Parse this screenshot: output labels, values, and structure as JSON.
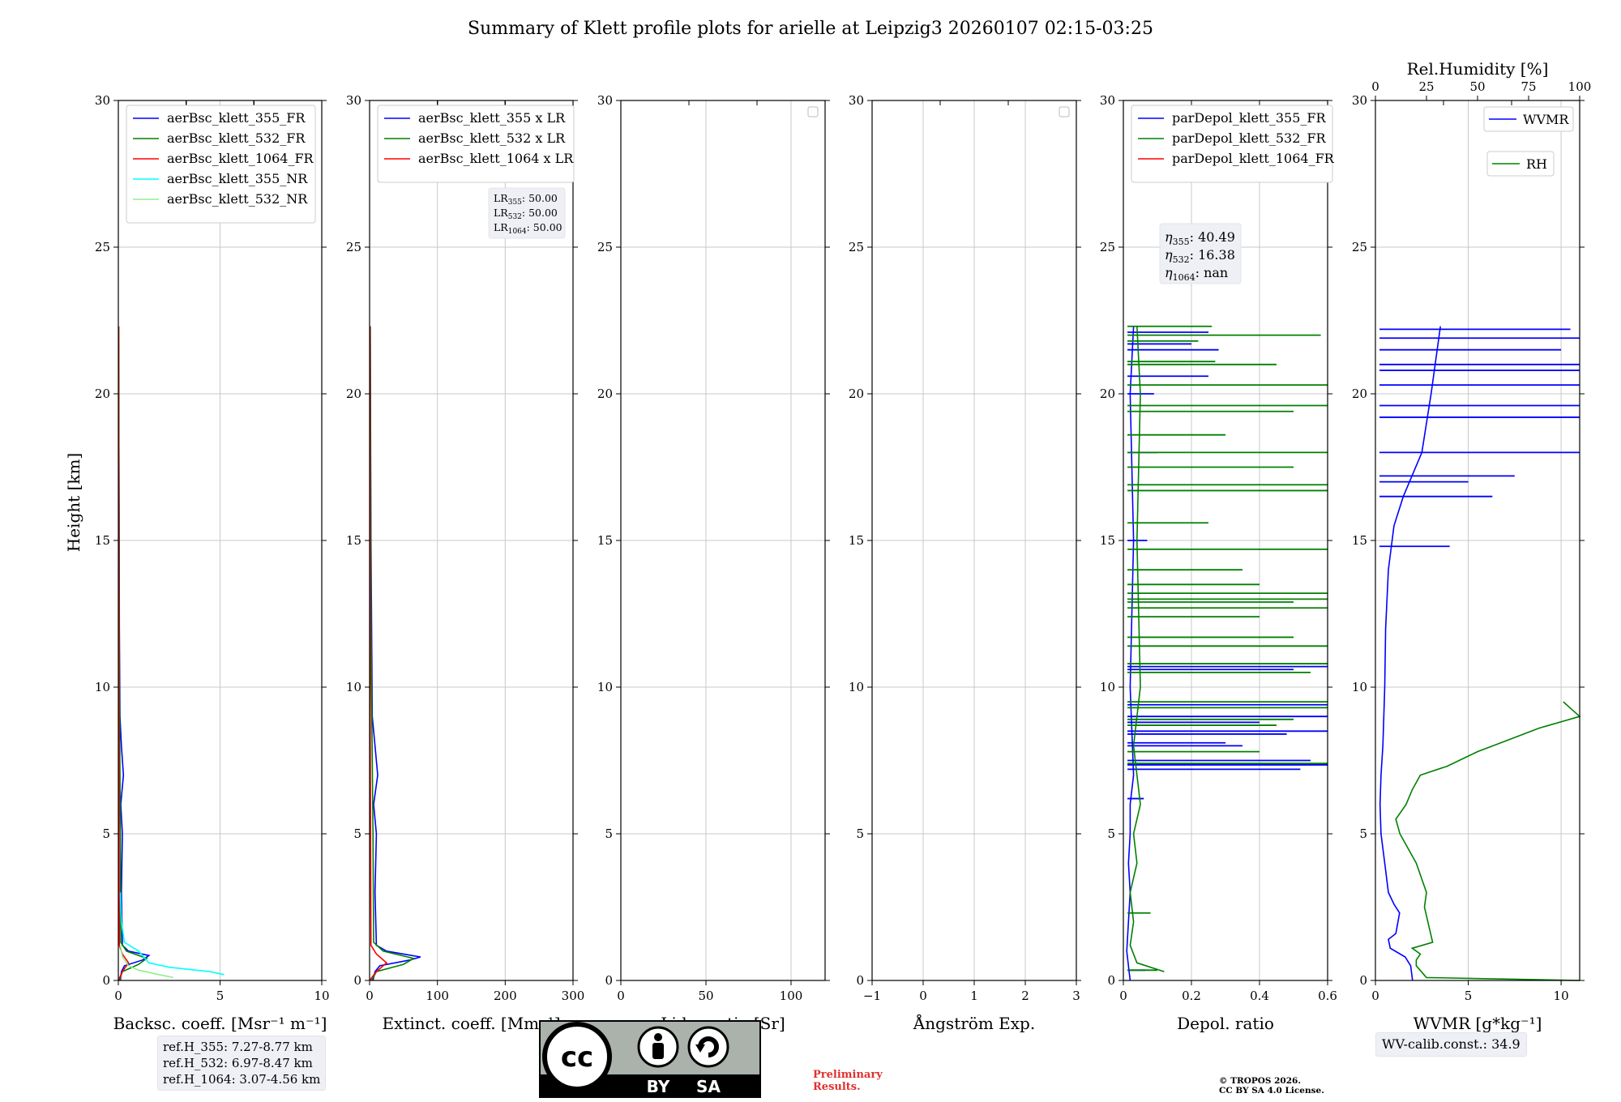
{
  "title": "Summary of Klett profile plots for arielle at Leipzig3 20260107 02:15-03:25",
  "ylabel": "Height [km]",
  "y_ticks": [
    "0",
    "5",
    "10",
    "15",
    "20",
    "25",
    "30"
  ],
  "colors": {
    "c355": "#0000ff",
    "c532": "#008000",
    "c1064": "#ff0000",
    "c355nr": "#00ffff",
    "c532nr": "#90ee90"
  },
  "chart_data": [
    {
      "type": "line",
      "id": "backscatter",
      "xlabel": "Backsc. coeff. [Msr⁻¹ m⁻¹]",
      "xlim": [
        0,
        10
      ],
      "xticks": [
        0,
        5,
        10
      ],
      "ylim": [
        0,
        30
      ],
      "series": [
        {
          "name": "aerBsc_klett_355_FR",
          "color": "#0000ff",
          "x": [
            0.1,
            0.15,
            0.3,
            1.2,
            1.5,
            0.5,
            0.2,
            0.15,
            0.2,
            0.12,
            0.25,
            0.15,
            0.08,
            0.05,
            0.04,
            0.02,
            0.01
          ],
          "y": [
            0,
            0.3,
            0.5,
            0.7,
            0.85,
            1.0,
            1.2,
            3.0,
            5.0,
            6.0,
            7.0,
            8.0,
            9.0,
            12.0,
            16.0,
            20.0,
            22.3
          ]
        },
        {
          "name": "aerBsc_klett_532_FR",
          "color": "#008000",
          "x": [
            0.05,
            0.2,
            1.0,
            1.4,
            0.4,
            0.12,
            0.1,
            0.05,
            0.03,
            0.02
          ],
          "y": [
            0,
            0.3,
            0.55,
            0.75,
            1.0,
            1.3,
            5.0,
            10.0,
            16.0,
            22.3
          ]
        },
        {
          "name": "aerBsc_klett_1064_FR",
          "color": "#ff0000",
          "x": [
            0,
            0.2,
            0.5,
            0.2,
            0.05,
            0.03,
            0.02,
            0.01
          ],
          "y": [
            0,
            0.3,
            0.6,
            0.9,
            1.2,
            5.0,
            15.0,
            22.3
          ]
        },
        {
          "name": "aerBsc_klett_355_NR",
          "color": "#00ffff",
          "x": [
            5.2,
            4.5,
            2.5,
            1.5,
            1.0,
            0.3,
            0.15,
            0.1
          ],
          "y": [
            0.2,
            0.3,
            0.45,
            0.6,
            1.0,
            1.3,
            2.0,
            3.0
          ]
        },
        {
          "name": "aerBsc_klett_532_NR",
          "color": "#90ee90",
          "x": [
            2.7,
            2.0,
            1.0,
            0.5,
            0.2,
            0.1
          ],
          "y": [
            0.1,
            0.2,
            0.35,
            0.5,
            0.8,
            1.2
          ]
        }
      ]
    },
    {
      "type": "line",
      "id": "extinction",
      "xlabel": "Extinct. coeff. [Mm⁻¹]",
      "xlim": [
        0,
        300
      ],
      "xticks": [
        0,
        100,
        200,
        300
      ],
      "ylim": [
        0,
        30
      ],
      "series": [
        {
          "name": "aerBsc_klett_355 x LR",
          "color": "#0000ff",
          "x": [
            5,
            8,
            15,
            60,
            75,
            25,
            10,
            8,
            10,
            6,
            12,
            8,
            4,
            2,
            1
          ],
          "y": [
            0,
            0.3,
            0.5,
            0.7,
            0.8,
            1.0,
            1.2,
            3.0,
            5.0,
            6.0,
            7.0,
            8.0,
            9.0,
            15.0,
            22.3
          ]
        },
        {
          "name": "aerBsc_klett_532 x LR",
          "color": "#008000",
          "x": [
            3,
            10,
            50,
            65,
            20,
            6,
            5,
            2,
            1
          ],
          "y": [
            0,
            0.3,
            0.55,
            0.75,
            1.0,
            1.3,
            5.0,
            12.0,
            22.3
          ]
        },
        {
          "name": "aerBsc_klett_1064 x LR",
          "color": "#ff0000",
          "x": [
            0,
            10,
            25,
            10,
            2,
            1,
            0.5
          ],
          "y": [
            0,
            0.3,
            0.6,
            0.9,
            1.2,
            8.0,
            22.3
          ]
        }
      ],
      "lr_values": {
        "355": "50.00",
        "532": "50.00",
        "1064": "50.00"
      }
    },
    {
      "type": "line",
      "id": "lidar-ratio",
      "xlabel": "Lidar ratio [Sr]",
      "xlim": [
        0,
        120
      ],
      "xticks": [
        0,
        50,
        100
      ],
      "ylim": [
        0,
        30
      ],
      "series": []
    },
    {
      "type": "line",
      "id": "angstrom",
      "xlabel": "Ångström Exp.",
      "xlim": [
        -1,
        3
      ],
      "xticks": [
        -1,
        0,
        1,
        2,
        3
      ],
      "ylim": [
        0,
        30
      ],
      "series": []
    },
    {
      "type": "line",
      "id": "depol",
      "xlabel": "Depol. ratio",
      "xlim": [
        0,
        0.6
      ],
      "xticks": [
        0,
        0.2,
        0.4,
        0.6
      ],
      "ylim": [
        0,
        30
      ],
      "series": [
        {
          "name": "parDepol_klett_355_FR",
          "color": "#0000ff",
          "x": [
            0.02,
            0.01,
            0.015,
            0.02,
            0.015,
            0.02,
            0.02,
            0.03,
            0.02,
            0.03,
            0.02,
            0.03
          ],
          "y": [
            0,
            1.0,
            2.0,
            3.0,
            4.0,
            5.0,
            6.0,
            7.0,
            10.0,
            15.0,
            20.0,
            22.3
          ],
          "spikes": [
            [
              0.065,
              0.35
            ],
            [
              0.06,
              6.2
            ],
            [
              0.52,
              7.2
            ],
            [
              0.6,
              7.35
            ],
            [
              0.55,
              7.5
            ],
            [
              0.35,
              8.0
            ],
            [
              0.3,
              8.1
            ],
            [
              0.48,
              8.4
            ],
            [
              0.6,
              8.5
            ],
            [
              0.4,
              8.8
            ],
            [
              0.6,
              9.0
            ],
            [
              0.6,
              9.4
            ],
            [
              0.5,
              10.6
            ],
            [
              0.6,
              10.7
            ],
            [
              0.07,
              15.0
            ],
            [
              0.1,
              18.0
            ],
            [
              0.09,
              20.0
            ],
            [
              0.25,
              20.6
            ],
            [
              0.28,
              21.5
            ],
            [
              0.2,
              21.7
            ],
            [
              0.25,
              22.1
            ]
          ]
        },
        {
          "name": "parDepol_klett_532_FR",
          "color": "#008000",
          "x": [
            0.12,
            0.04,
            0.02,
            0.03,
            0.02,
            0.04,
            0.03,
            0.05,
            0.03,
            0.05,
            0.04,
            0.05,
            0.04
          ],
          "y": [
            0.3,
            0.6,
            1.2,
            2.0,
            3.0,
            4.0,
            5.0,
            6.0,
            8.0,
            10.0,
            15.0,
            20.0,
            22.3
          ],
          "spikes": [
            [
              0.1,
              0.35
            ],
            [
              0.08,
              2.3
            ],
            [
              0.6,
              7.4
            ],
            [
              0.4,
              7.8
            ],
            [
              0.45,
              8.7
            ],
            [
              0.5,
              8.9
            ],
            [
              0.6,
              9.3
            ],
            [
              0.6,
              9.5
            ],
            [
              0.55,
              10.5
            ],
            [
              0.6,
              10.8
            ],
            [
              0.6,
              11.4
            ],
            [
              0.5,
              11.7
            ],
            [
              0.4,
              12.4
            ],
            [
              0.6,
              12.7
            ],
            [
              0.5,
              12.9
            ],
            [
              0.6,
              13.0
            ],
            [
              0.6,
              13.2
            ],
            [
              0.4,
              13.5
            ],
            [
              0.6,
              14.7
            ],
            [
              0.35,
              14.0
            ],
            [
              0.25,
              15.6
            ],
            [
              0.6,
              16.7
            ],
            [
              0.6,
              16.9
            ],
            [
              0.5,
              17.5
            ],
            [
              0.6,
              18.0
            ],
            [
              0.3,
              18.6
            ],
            [
              0.5,
              19.4
            ],
            [
              0.6,
              19.6
            ],
            [
              0.6,
              20.3
            ],
            [
              0.45,
              21.0
            ],
            [
              0.27,
              21.1
            ],
            [
              0.22,
              21.8
            ],
            [
              0.58,
              22.0
            ],
            [
              0.26,
              22.3
            ]
          ]
        },
        {
          "name": "parDepol_klett_1064_FR",
          "color": "#ff0000",
          "x": [],
          "y": []
        }
      ],
      "eta": {
        "355": "40.49",
        "532": "16.38",
        "1064": "nan"
      }
    },
    {
      "type": "line",
      "id": "wvmr",
      "xlabel": "WVMR [g*kg⁻¹]",
      "xlim": [
        0,
        11
      ],
      "xticks": [
        0,
        5,
        10
      ],
      "ylim": [
        0,
        30
      ],
      "top_axis": {
        "label": "Rel.Humidity [%]",
        "lim": [
          0,
          100
        ],
        "ticks": [
          0,
          25,
          50,
          75,
          100
        ]
      },
      "series": [
        {
          "name": "WVMR",
          "color": "#0000ff",
          "x": [
            2.0,
            1.9,
            1.6,
            0.8,
            0.7,
            1.1,
            1.3,
            1.0,
            0.7,
            0.5,
            0.3,
            0.25,
            0.3,
            0.4,
            0.5,
            0.55,
            0.7,
            1.0,
            1.5,
            2.5,
            3.0,
            3.5
          ],
          "y": [
            0,
            0.5,
            0.8,
            1.1,
            1.4,
            1.6,
            2.3,
            2.6,
            3.0,
            4.0,
            5.0,
            6.0,
            7.0,
            8.0,
            10.0,
            12.0,
            14.0,
            15.5,
            16.5,
            18.0,
            20.0,
            22.3
          ],
          "spikes": [
            [
              4.0,
              14.8
            ],
            [
              6.3,
              16.5
            ],
            [
              5.0,
              17.0
            ],
            [
              7.5,
              17.2
            ],
            [
              11.0,
              18.0
            ],
            [
              11.0,
              19.2
            ],
            [
              11.0,
              19.6
            ],
            [
              11.0,
              20.3
            ],
            [
              11.0,
              20.8
            ],
            [
              11.0,
              21.0
            ],
            [
              10.0,
              21.5
            ],
            [
              11.0,
              21.9
            ],
            [
              10.5,
              22.2
            ]
          ]
        },
        {
          "name": "RH",
          "color": "#008000",
          "x_rh": [
            100,
            25,
            20,
            20,
            22,
            18,
            28,
            24,
            25,
            20,
            12,
            10,
            15,
            18,
            22,
            35,
            50,
            65,
            80,
            100,
            92
          ],
          "y": [
            0,
            0.1,
            0.5,
            0.7,
            0.9,
            1.1,
            1.3,
            2.5,
            3.0,
            4.0,
            5.0,
            5.5,
            6.0,
            6.5,
            7.0,
            7.3,
            7.8,
            8.2,
            8.6,
            9.0,
            9.5
          ]
        }
      ]
    }
  ],
  "ref_heights": [
    "ref.H_355: 7.27-8.77 km",
    "ref.H_532: 6.97-8.47 km",
    "ref.H_1064: 3.07-4.56 km"
  ],
  "wv_calib": "WV-calib.const.: 34.9",
  "license": {
    "cc": "cc",
    "by": "BY",
    "sa": "SA"
  },
  "preliminary": [
    "Preliminary",
    "Results."
  ],
  "copyright": [
    "© TROPOS 2026.",
    "CC BY SA 4.0 License."
  ]
}
